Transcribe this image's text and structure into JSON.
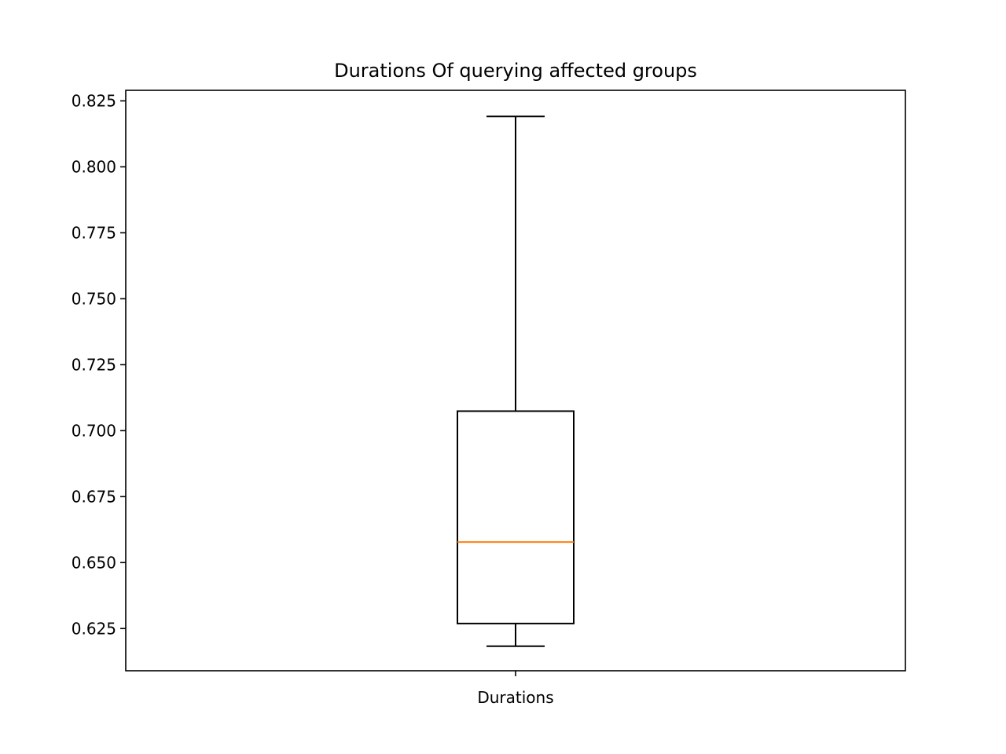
{
  "chart_data": {
    "type": "box",
    "title": "Durations Of querying affected groups",
    "xlabel": "",
    "ylabel": "",
    "categories": [
      "Durations"
    ],
    "ylim": [
      0.609,
      0.829
    ],
    "yticks": [
      "0.625",
      "0.650",
      "0.675",
      "0.700",
      "0.725",
      "0.750",
      "0.775",
      "0.800",
      "0.825"
    ],
    "box": {
      "whisker_low": 0.6183,
      "q1": 0.6269,
      "median": 0.6578,
      "q3": 0.7074,
      "whisker_high": 0.8191
    },
    "grid": false,
    "colors": {
      "box": "#000000",
      "median": "#ff7f0e"
    }
  }
}
